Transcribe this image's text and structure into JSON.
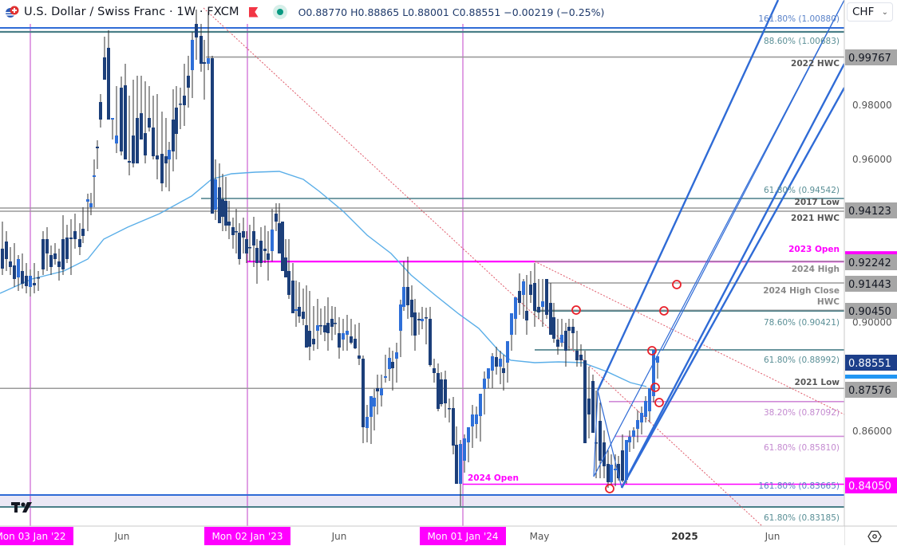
{
  "header": {
    "symbol_title": "U.S. Dollar / Swiss Franc · 1W · FXCM",
    "ohlc": {
      "open_label": "O",
      "open": "0.88770",
      "high_label": "H",
      "high": "0.88865",
      "low_label": "L",
      "low": "0.88001",
      "close_label": "C",
      "close": "0.88551",
      "change": "−0.00219 (−0.25%)"
    },
    "icons": [
      "usd-chf-flag-icon",
      "red-flag-icon",
      "market-status-dot-icon"
    ]
  },
  "currency_selector": {
    "value": "CHF",
    "icon": "chevron-down-icon"
  },
  "colors": {
    "up_candle": "#2e6fd8",
    "down_candle": "#1c3f7a",
    "ma_line": "#5aaee8",
    "magenta": "#ff00ff",
    "teal_level": "#4a7f88",
    "gray_level": "#9a9a9a",
    "pink_fib": "#d08ad8",
    "pitchfork": "#2f6bd6",
    "trendline": "#e05a6a",
    "current_price_bg": "#1c3f8a"
  },
  "chart_data": {
    "type": "candlestick",
    "title": "U.S. Dollar / Swiss Franc · 1W · FXCM",
    "ylabel": "CHF",
    "ylim": [
      0.828,
      1.016
    ],
    "y_ticks": [
      "0.98000",
      "0.96000",
      "0.90000",
      "0.86000"
    ],
    "x_ticks": [
      "Mon 03 Jan '22",
      "Jun",
      "Mon 02 Jan '23",
      "Jun",
      "Mon 01 Jan '24",
      "May",
      "2025",
      "Jun"
    ],
    "price_tags": [
      {
        "value": "0.99767",
        "style": "gray"
      },
      {
        "value": "0.94123",
        "style": "gray"
      },
      {
        "value": "0.92242",
        "style": "gray"
      },
      {
        "value": "0.91443",
        "style": "gray"
      },
      {
        "value": "0.90450",
        "style": "gray"
      },
      {
        "value": "0.88551",
        "style": "current"
      },
      {
        "value": "0.87576",
        "style": "gray"
      },
      {
        "value": "0.84050",
        "style": "magenta"
      }
    ],
    "levels": [
      {
        "label": "161.80% (1.00880)",
        "price": 1.0088,
        "color": "#2f6bd6"
      },
      {
        "label": "88.60% (1.00683)",
        "price": 1.00683,
        "color": "#4a7f88"
      },
      {
        "label": "2022 HWC",
        "price": 0.99767,
        "color": "#9a9a9a"
      },
      {
        "label": "61.80% (0.94542)",
        "price": 0.94542,
        "color": "#4a7f88"
      },
      {
        "label": "2017 Low",
        "price": 0.942,
        "color": "#9a9a9a"
      },
      {
        "label": "2021 HWC",
        "price": 0.94123,
        "color": "#9a9a9a"
      },
      {
        "label": "2023 Open",
        "price": 0.92242,
        "color": "#ff00ff"
      },
      {
        "label": "2024 High",
        "price": 0.9205,
        "color": "#9a9a9a"
      },
      {
        "label": "2024 High Close",
        "price": 0.91443,
        "color": "#9a9a9a"
      },
      {
        "label": "HWC",
        "price": 0.9045,
        "color": "#9a9a9a"
      },
      {
        "label": "78.60% (0.90421)",
        "price": 0.90421,
        "color": "#4a7f88"
      },
      {
        "label": "61.80% (0.88992)",
        "price": 0.88992,
        "color": "#4a7f88"
      },
      {
        "label": "2021 Low",
        "price": 0.87576,
        "color": "#9a9a9a"
      },
      {
        "label": "38.20% (0.87092)",
        "price": 0.87092,
        "color": "#d08ad8"
      },
      {
        "label": "61.80% (0.85810)",
        "price": 0.8581,
        "color": "#d08ad8"
      },
      {
        "label": "2024 Open",
        "price": 0.8405,
        "color": "#ff00ff"
      },
      {
        "label": "161.80% (0.83665)",
        "price": 0.83665,
        "color": "#2f6bd6"
      },
      {
        "label": "61.80% (0.83185)",
        "price": 0.83185,
        "color": "#4a7f88"
      }
    ],
    "last_close": 0.88551,
    "indicator": "Moving average (light blue line)",
    "annotations": [
      "Ascending pitchfork",
      "Descending dotted trendlines from 2022 high",
      "Red circle markers at key touches"
    ]
  },
  "footer": {
    "tv_logo": "tradingview-logo-icon",
    "settings_icon": "gear-icon"
  }
}
